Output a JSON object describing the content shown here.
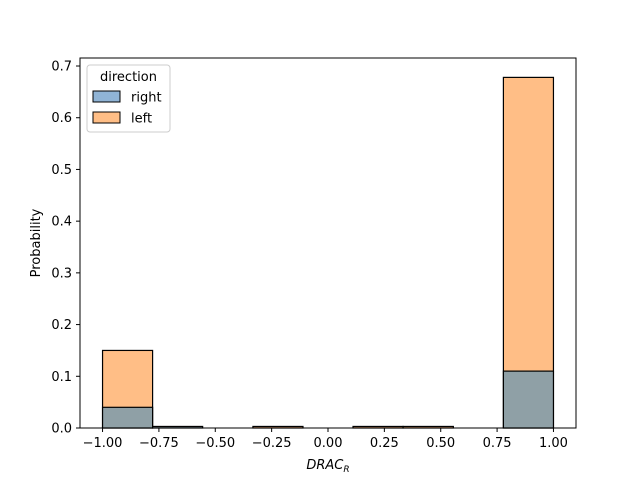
{
  "chart_data": {
    "type": "histogram",
    "xlabel": "DRAC",
    "xlabel_subscript": "R",
    "ylabel": "Probability",
    "xlim": [
      -1.1,
      1.1
    ],
    "ylim": [
      0,
      0.7155
    ],
    "xticks": [
      -1.0,
      -0.75,
      -0.5,
      -0.25,
      0.0,
      0.25,
      0.5,
      0.75,
      1.0
    ],
    "xtick_labels": [
      "−1.00",
      "−0.75",
      "−0.50",
      "−0.25",
      "0.00",
      "0.25",
      "0.50",
      "0.75",
      "1.00"
    ],
    "yticks": [
      0.0,
      0.1,
      0.2,
      0.3,
      0.4,
      0.5,
      0.6,
      0.7
    ],
    "ytick_labels": [
      "0.0",
      "0.1",
      "0.2",
      "0.3",
      "0.4",
      "0.5",
      "0.6",
      "0.7"
    ],
    "bin_edges": [
      -1.0,
      -0.778,
      -0.556,
      -0.333,
      -0.111,
      0.111,
      0.333,
      0.556,
      0.778,
      1.0
    ],
    "legend": {
      "title": "direction",
      "position": "upper left"
    },
    "series": [
      {
        "name": "left",
        "color": "#ffbe86",
        "values": [
          0.15,
          0.0,
          0.0,
          0.003,
          0.0,
          0.003,
          0.003,
          0.0,
          0.678
        ]
      },
      {
        "name": "right",
        "color": "#8fa0a6",
        "legend_color": "#90b4d6",
        "values": [
          0.04,
          0.003,
          0.0,
          0.0,
          0.0,
          0.0,
          0.0,
          0.0,
          0.11
        ]
      }
    ]
  }
}
